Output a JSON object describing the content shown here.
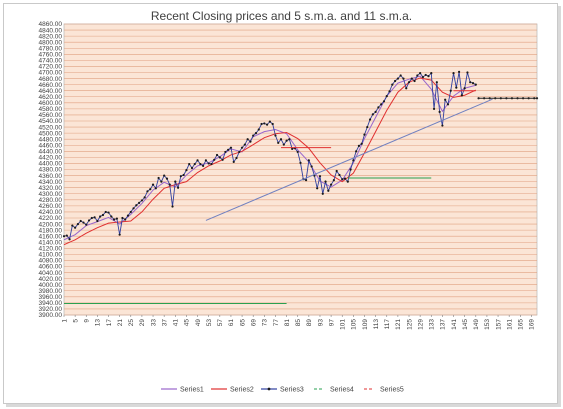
{
  "chart_data": {
    "type": "line",
    "title": "Recent Closing prices and 5 s.m.a. and 11 s.m.a.",
    "xlabel": "",
    "ylabel": "",
    "ylim": [
      3900,
      4860
    ],
    "xlim": [
      1,
      171
    ],
    "ytick_step": 20,
    "x_tick_labels": [
      "1",
      "5",
      "9",
      "13",
      "17",
      "21",
      "25",
      "29",
      "33",
      "37",
      "41",
      "45",
      "49",
      "53",
      "57",
      "61",
      "65",
      "69",
      "73",
      "77",
      "81",
      "85",
      "89",
      "93",
      "97",
      "101",
      "105",
      "109",
      "113",
      "117",
      "121",
      "125",
      "129",
      "133",
      "137",
      "141",
      "145",
      "149",
      "153",
      "157",
      "161",
      "165",
      "169"
    ],
    "grid": true,
    "legend_position": "bottom",
    "plot_background": "#fbe5d6",
    "gridline_color": "#e0a080",
    "series": [
      {
        "name": "Series1",
        "color": "#9966cc",
        "marker": "none",
        "points": [
          [
            1,
            4148
          ],
          [
            5,
            4165
          ],
          [
            9,
            4195
          ],
          [
            13,
            4208
          ],
          [
            17,
            4222
          ],
          [
            21,
            4200
          ],
          [
            25,
            4232
          ],
          [
            29,
            4268
          ],
          [
            33,
            4312
          ],
          [
            37,
            4338
          ],
          [
            41,
            4322
          ],
          [
            45,
            4362
          ],
          [
            49,
            4392
          ],
          [
            53,
            4402
          ],
          [
            57,
            4422
          ],
          [
            61,
            4448
          ],
          [
            65,
            4438
          ],
          [
            69,
            4488
          ],
          [
            73,
            4505
          ],
          [
            77,
            4512
          ],
          [
            81,
            4498
          ],
          [
            85,
            4445
          ],
          [
            89,
            4405
          ],
          [
            93,
            4342
          ],
          [
            97,
            4322
          ],
          [
            101,
            4345
          ],
          [
            105,
            4402
          ],
          [
            109,
            4482
          ],
          [
            113,
            4552
          ],
          [
            117,
            4622
          ],
          [
            121,
            4665
          ],
          [
            125,
            4678
          ],
          [
            129,
            4688
          ],
          [
            133,
            4645
          ],
          [
            137,
            4572
          ],
          [
            141,
            4622
          ],
          [
            145,
            4648
          ],
          [
            149,
            4658
          ]
        ]
      },
      {
        "name": "Series2",
        "color": "#e03030",
        "marker": "none",
        "points": [
          [
            1,
            4132
          ],
          [
            5,
            4148
          ],
          [
            9,
            4170
          ],
          [
            13,
            4188
          ],
          [
            17,
            4203
          ],
          [
            21,
            4207
          ],
          [
            25,
            4210
          ],
          [
            29,
            4240
          ],
          [
            33,
            4282
          ],
          [
            37,
            4318
          ],
          [
            41,
            4330
          ],
          [
            45,
            4340
          ],
          [
            49,
            4370
          ],
          [
            53,
            4392
          ],
          [
            57,
            4408
          ],
          [
            61,
            4428
          ],
          [
            65,
            4440
          ],
          [
            69,
            4462
          ],
          [
            73,
            4485
          ],
          [
            77,
            4498
          ],
          [
            81,
            4502
          ],
          [
            85,
            4482
          ],
          [
            89,
            4450
          ],
          [
            93,
            4402
          ],
          [
            97,
            4362
          ],
          [
            101,
            4340
          ],
          [
            105,
            4368
          ],
          [
            109,
            4435
          ],
          [
            113,
            4505
          ],
          [
            117,
            4575
          ],
          [
            121,
            4635
          ],
          [
            125,
            4668
          ],
          [
            129,
            4682
          ],
          [
            133,
            4675
          ],
          [
            137,
            4635
          ],
          [
            141,
            4618
          ],
          [
            145,
            4625
          ],
          [
            149,
            4642
          ]
        ]
      },
      {
        "name": "Series3",
        "color": "#303f9f",
        "marker": "dot",
        "points": [
          [
            1,
            4160
          ],
          [
            2,
            4162
          ],
          [
            3,
            4150
          ],
          [
            4,
            4195
          ],
          [
            5,
            4188
          ],
          [
            6,
            4200
          ],
          [
            7,
            4210
          ],
          [
            8,
            4205
          ],
          [
            9,
            4198
          ],
          [
            10,
            4212
          ],
          [
            11,
            4220
          ],
          [
            12,
            4222
          ],
          [
            13,
            4210
          ],
          [
            14,
            4225
          ],
          [
            15,
            4230
          ],
          [
            16,
            4240
          ],
          [
            17,
            4238
          ],
          [
            18,
            4225
          ],
          [
            19,
            4215
          ],
          [
            20,
            4218
          ],
          [
            21,
            4165
          ],
          [
            22,
            4220
          ],
          [
            23,
            4215
          ],
          [
            24,
            4228
          ],
          [
            25,
            4240
          ],
          [
            26,
            4252
          ],
          [
            27,
            4262
          ],
          [
            28,
            4270
          ],
          [
            29,
            4278
          ],
          [
            30,
            4288
          ],
          [
            31,
            4308
          ],
          [
            32,
            4315
          ],
          [
            33,
            4330
          ],
          [
            34,
            4318
          ],
          [
            35,
            4352
          ],
          [
            36,
            4340
          ],
          [
            37,
            4360
          ],
          [
            38,
            4350
          ],
          [
            39,
            4330
          ],
          [
            40,
            4258
          ],
          [
            41,
            4340
          ],
          [
            42,
            4320
          ],
          [
            43,
            4358
          ],
          [
            44,
            4362
          ],
          [
            45,
            4378
          ],
          [
            46,
            4398
          ],
          [
            47,
            4385
          ],
          [
            48,
            4398
          ],
          [
            49,
            4410
          ],
          [
            50,
            4398
          ],
          [
            51,
            4392
          ],
          [
            52,
            4410
          ],
          [
            53,
            4400
          ],
          [
            54,
            4398
          ],
          [
            55,
            4412
          ],
          [
            56,
            4428
          ],
          [
            57,
            4420
          ],
          [
            58,
            4412
          ],
          [
            59,
            4438
          ],
          [
            60,
            4445
          ],
          [
            61,
            4452
          ],
          [
            62,
            4405
          ],
          [
            63,
            4418
          ],
          [
            64,
            4438
          ],
          [
            65,
            4452
          ],
          [
            66,
            4462
          ],
          [
            67,
            4480
          ],
          [
            68,
            4472
          ],
          [
            69,
            4492
          ],
          [
            70,
            4500
          ],
          [
            71,
            4512
          ],
          [
            72,
            4530
          ],
          [
            73,
            4532
          ],
          [
            74,
            4528
          ],
          [
            75,
            4538
          ],
          [
            76,
            4530
          ],
          [
            77,
            4492
          ],
          [
            78,
            4468
          ],
          [
            79,
            4480
          ],
          [
            80,
            4462
          ],
          [
            81,
            4475
          ],
          [
            82,
            4480
          ],
          [
            83,
            4448
          ],
          [
            84,
            4450
          ],
          [
            85,
            4438
          ],
          [
            86,
            4402
          ],
          [
            87,
            4348
          ],
          [
            88,
            4345
          ],
          [
            89,
            4410
          ],
          [
            90,
            4390
          ],
          [
            91,
            4360
          ],
          [
            92,
            4318
          ],
          [
            93,
            4358
          ],
          [
            94,
            4300
          ],
          [
            95,
            4340
          ],
          [
            96,
            4310
          ],
          [
            97,
            4330
          ],
          [
            98,
            4345
          ],
          [
            99,
            4375
          ],
          [
            100,
            4362
          ],
          [
            101,
            4348
          ],
          [
            102,
            4350
          ],
          [
            103,
            4340
          ],
          [
            104,
            4380
          ],
          [
            105,
            4410
          ],
          [
            106,
            4440
          ],
          [
            107,
            4458
          ],
          [
            108,
            4465
          ],
          [
            109,
            4495
          ],
          [
            110,
            4520
          ],
          [
            111,
            4545
          ],
          [
            112,
            4562
          ],
          [
            113,
            4570
          ],
          [
            114,
            4585
          ],
          [
            115,
            4595
          ],
          [
            116,
            4605
          ],
          [
            117,
            4622
          ],
          [
            118,
            4638
          ],
          [
            119,
            4660
          ],
          [
            120,
            4672
          ],
          [
            121,
            4680
          ],
          [
            122,
            4690
          ],
          [
            123,
            4680
          ],
          [
            124,
            4648
          ],
          [
            125,
            4668
          ],
          [
            126,
            4680
          ],
          [
            127,
            4672
          ],
          [
            128,
            4690
          ],
          [
            129,
            4698
          ],
          [
            130,
            4685
          ],
          [
            131,
            4692
          ],
          [
            132,
            4688
          ],
          [
            133,
            4698
          ],
          [
            134,
            4580
          ],
          [
            135,
            4668
          ],
          [
            136,
            4570
          ],
          [
            137,
            4525
          ],
          [
            138,
            4610
          ],
          [
            139,
            4595
          ],
          [
            140,
            4640
          ],
          [
            141,
            4698
          ],
          [
            142,
            4650
          ],
          [
            143,
            4702
          ],
          [
            144,
            4625
          ],
          [
            145,
            4648
          ],
          [
            146,
            4700
          ],
          [
            147,
            4668
          ],
          [
            148,
            4665
          ],
          [
            149,
            4660
          ]
        ]
      },
      {
        "name": "Series4",
        "color": "#2aa050",
        "marker": "none",
        "segments": [
          [
            [
              1,
              3938
            ],
            [
              81,
              3938
            ]
          ],
          [
            [
              103,
              4352
            ],
            [
              133,
              4352
            ]
          ]
        ]
      },
      {
        "name": "Series5",
        "color": "#e03030",
        "marker": "none",
        "segments": [
          [
            [
              79,
              4452
            ],
            [
              97,
              4452
            ]
          ],
          [
            [
              141,
              4640
            ],
            [
              149,
              4640
            ]
          ]
        ]
      },
      {
        "name": "Trendline",
        "color": "#7080c0",
        "marker": "none",
        "in_legend": false,
        "points": [
          [
            52,
            4212
          ],
          [
            155,
            4612
          ]
        ]
      },
      {
        "name": "Projection",
        "color": "#222222",
        "marker": "dot",
        "in_legend": false,
        "points": [
          [
            150,
            4615
          ],
          [
            152,
            4615
          ],
          [
            154,
            4615
          ],
          [
            156,
            4615
          ],
          [
            158,
            4615
          ],
          [
            160,
            4615
          ],
          [
            162,
            4615
          ],
          [
            164,
            4615
          ],
          [
            166,
            4615
          ],
          [
            168,
            4615
          ],
          [
            170,
            4615
          ],
          [
            171,
            4615
          ]
        ]
      }
    ]
  }
}
